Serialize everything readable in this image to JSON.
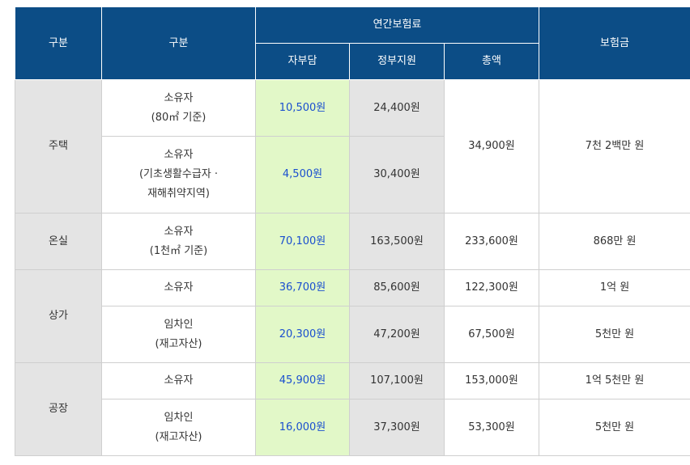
{
  "header": {
    "col1": "구분",
    "col2": "구분",
    "annual_premium": "연간보험료",
    "self_pay": "자부담",
    "gov_support": "정부지원",
    "total": "총액",
    "coverage": "보험금"
  },
  "rows": {
    "house": {
      "category": "주택",
      "r1": {
        "type_line1": "소유자",
        "type_line2": "(80㎡ 기준)",
        "self": "10,500원",
        "gov": "24,400원"
      },
      "r2": {
        "type_line1": "소유자",
        "type_line2": "(기초생활수급자 ·",
        "type_line3": "재해취약지역)",
        "self": "4,500원",
        "gov": "30,400원"
      },
      "total": "34,900원",
      "coverage": "7천 2백만 원"
    },
    "greenhouse": {
      "category": "온실",
      "r1": {
        "type_line1": "소유자",
        "type_line2": "(1천㎡ 기준)",
        "self": "70,100원",
        "gov": "163,500원",
        "total": "233,600원",
        "coverage": "868만 원"
      }
    },
    "store": {
      "category": "상가",
      "r1": {
        "type_line1": "소유자",
        "self": "36,700원",
        "gov": "85,600원",
        "total": "122,300원",
        "coverage": "1억 원"
      },
      "r2": {
        "type_line1": "임차인",
        "type_line2": "(재고자산)",
        "self": "20,300원",
        "gov": "47,200원",
        "total": "67,500원",
        "coverage": "5천만 원"
      }
    },
    "factory": {
      "category": "공장",
      "r1": {
        "type_line1": "소유자",
        "self": "45,900원",
        "gov": "107,100원",
        "total": "153,000원",
        "coverage": "1억 5천만 원"
      },
      "r2": {
        "type_line1": "임차인",
        "type_line2": "(재고자산)",
        "self": "16,000원",
        "gov": "37,300원",
        "total": "53,300원",
        "coverage": "5천만 원"
      }
    }
  },
  "colors": {
    "header_bg": "#0c4d86",
    "self_bg": "#e2f8c8",
    "self_text": "#1a4fcf",
    "gray_bg": "#e4e4e4"
  }
}
